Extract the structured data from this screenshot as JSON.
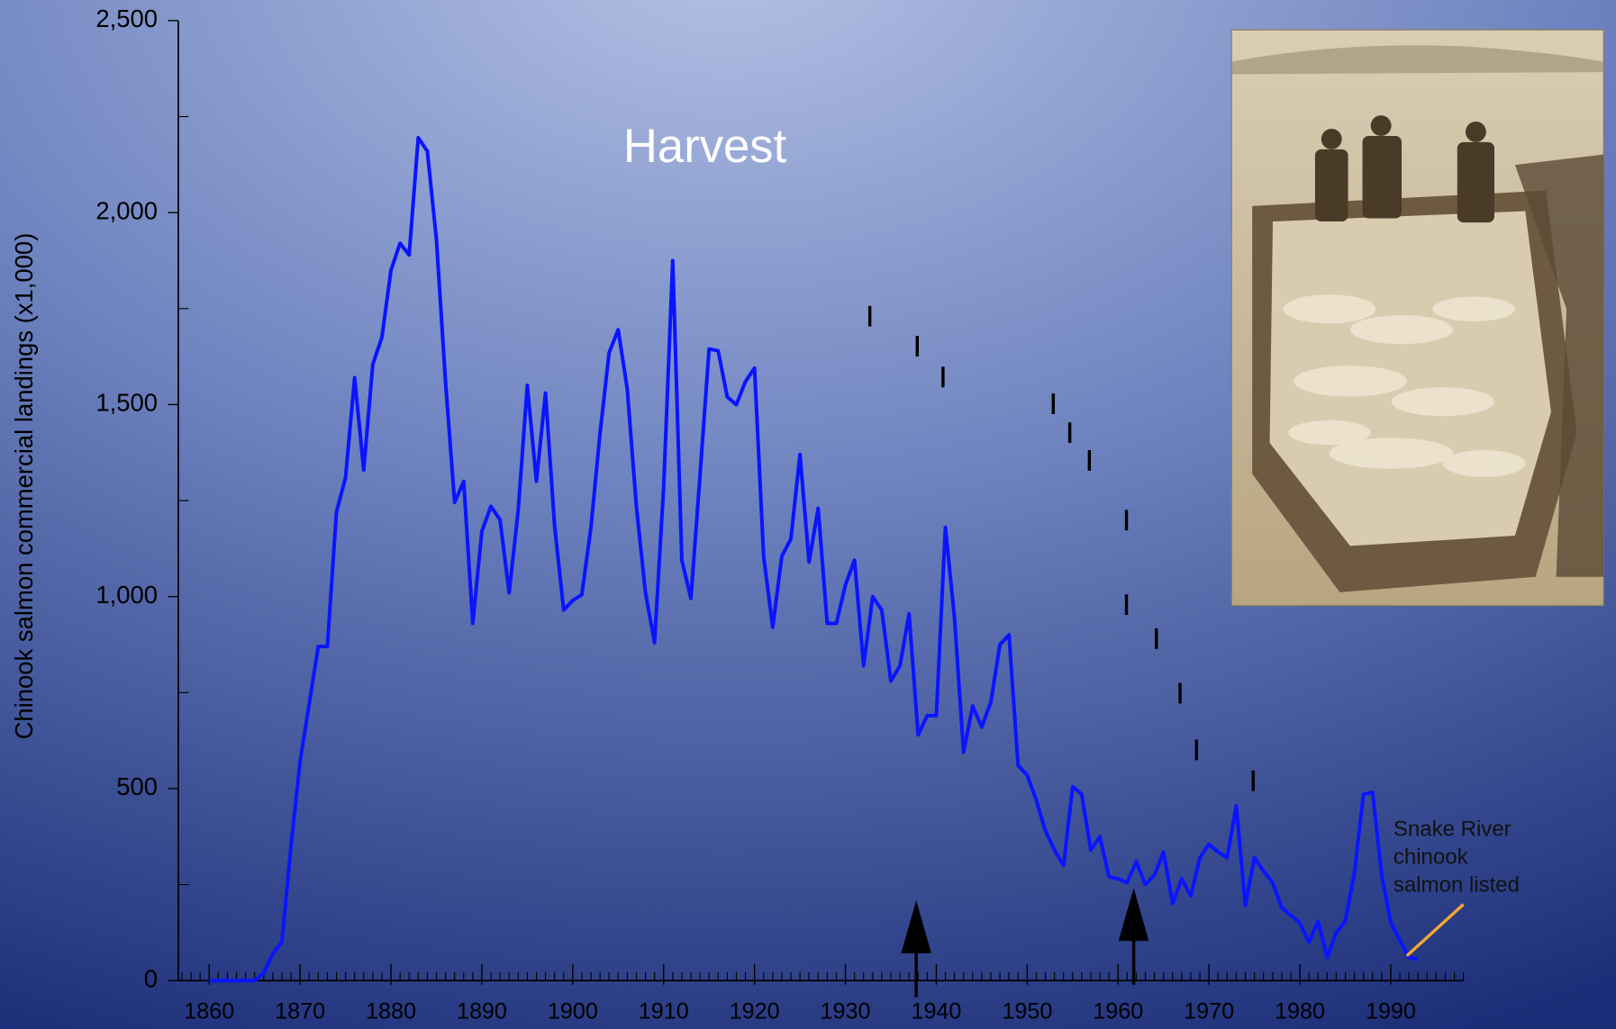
{
  "chart_data": {
    "type": "line",
    "title": "Harvest",
    "y_label": "Chinook salmon commercial landings (x1,000)",
    "annotation": [
      "Snake River",
      "chinook",
      "salmon listed"
    ],
    "color": "#0a14ff",
    "grid": false,
    "x": [
      1860,
      1861,
      1862,
      1863,
      1864,
      1865,
      1866,
      1867,
      1868,
      1869,
      1870,
      1871,
      1872,
      1873,
      1874,
      1875,
      1876,
      1877,
      1878,
      1879,
      1880,
      1881,
      1882,
      1883,
      1884,
      1885,
      1886,
      1887,
      1888,
      1889,
      1890,
      1891,
      1892,
      1893,
      1894,
      1895,
      1896,
      1897,
      1898,
      1899,
      1900,
      1901,
      1902,
      1903,
      1904,
      1905,
      1906,
      1907,
      1908,
      1909,
      1910,
      1911,
      1912,
      1913,
      1914,
      1915,
      1916,
      1917,
      1918,
      1919,
      1920,
      1921,
      1922,
      1923,
      1924,
      1925,
      1926,
      1927,
      1928,
      1929,
      1930,
      1931,
      1932,
      1933,
      1934,
      1935,
      1936,
      1937,
      1938,
      1939,
      1940,
      1941,
      1942,
      1943,
      1944,
      1945,
      1946,
      1947,
      1948,
      1949,
      1950,
      1951,
      1952,
      1953,
      1954,
      1955,
      1956,
      1957,
      1958,
      1959,
      1960,
      1961,
      1962,
      1963,
      1964,
      1965,
      1966,
      1967,
      1968,
      1969,
      1970,
      1971,
      1972,
      1973,
      1974,
      1975,
      1976,
      1977,
      1978,
      1979,
      1980,
      1981,
      1982,
      1983,
      1984,
      1985,
      1986,
      1987,
      1988,
      1989,
      1990,
      1991,
      1992,
      1993
    ],
    "values": [
      0,
      0,
      0,
      0,
      0,
      0,
      20,
      70,
      100,
      350,
      570,
      720,
      870,
      870,
      1220,
      1310,
      1570,
      1330,
      1605,
      1675,
      1850,
      1920,
      1890,
      2195,
      2160,
      1930,
      1560,
      1245,
      1300,
      930,
      1170,
      1235,
      1200,
      1010,
      1225,
      1550,
      1300,
      1530,
      1185,
      965,
      990,
      1005,
      1180,
      1425,
      1635,
      1695,
      1540,
      1235,
      1010,
      880,
      1285,
      1875,
      1095,
      995,
      1315,
      1645,
      1640,
      1520,
      1500,
      1560,
      1595,
      1105,
      920,
      1105,
      1150,
      1370,
      1090,
      1230,
      930,
      930,
      1030,
      1095,
      820,
      1000,
      965,
      780,
      820,
      955,
      640,
      690,
      690,
      1180,
      945,
      595,
      715,
      660,
      725,
      875,
      900,
      560,
      535,
      470,
      390,
      340,
      300,
      505,
      485,
      340,
      375,
      270,
      265,
      255,
      310,
      250,
      275,
      335,
      200,
      265,
      220,
      320,
      355,
      335,
      320,
      455,
      195,
      320,
      285,
      255,
      190,
      170,
      150,
      100,
      155,
      60,
      125,
      155,
      280,
      485,
      490,
      275,
      150,
      105,
      60,
      55
    ],
    "xlim": [
      1856.6,
      1998
    ],
    "xticks": [
      1860,
      1870,
      1880,
      1890,
      1900,
      1910,
      1920,
      1930,
      1940,
      1950,
      1960,
      1970,
      1980,
      1990
    ],
    "ylim": [
      0,
      2500
    ],
    "yticks": [
      0,
      500,
      {
        "value": 1000,
        "label": "1,000"
      },
      {
        "value": 1500,
        "label": "1,500"
      },
      {
        "value": 2000,
        "label": "2,000"
      },
      {
        "value": 2500,
        "label": "2,500"
      }
    ]
  }
}
